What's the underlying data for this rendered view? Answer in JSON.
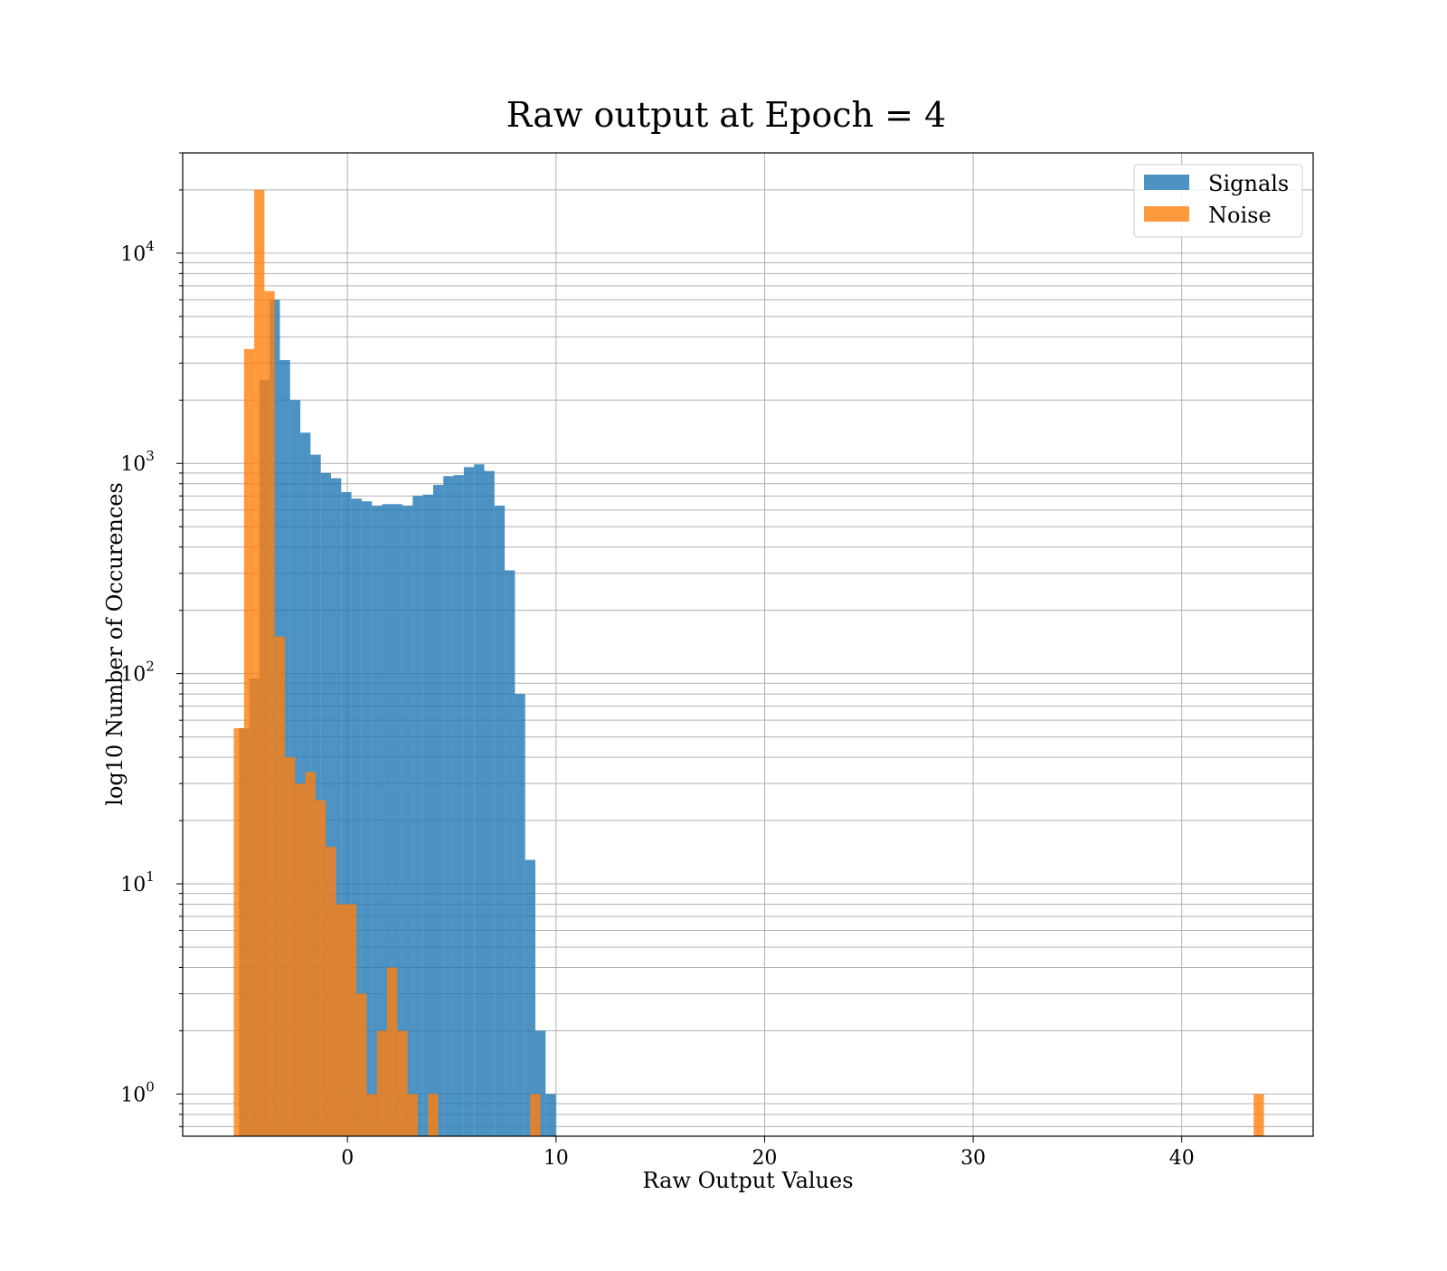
{
  "chart_data": {
    "type": "histogram",
    "title": "Raw output at Epoch = 4",
    "xlabel": "Raw Output Values",
    "ylabel": "log10 Number of Occurences",
    "xlim": [
      -7.9,
      46.3
    ],
    "ylim": [
      0.63,
      30000
    ],
    "yscale": "log",
    "grid": true,
    "legend_position": "top-right",
    "x_ticks": [
      0,
      10,
      20,
      30,
      40
    ],
    "y_ticks": [
      {
        "value": 1,
        "base": "10",
        "exp": "0"
      },
      {
        "value": 10,
        "base": "10",
        "exp": "1"
      },
      {
        "value": 100,
        "base": "10",
        "exp": "2"
      },
      {
        "value": 1000,
        "base": "10",
        "exp": "3"
      },
      {
        "value": 10000,
        "base": "10",
        "exp": "4"
      }
    ],
    "series": [
      {
        "name": "Signals",
        "color": "#1f77b4",
        "opacity": 0.8,
        "bin_start": -5.2,
        "bin_width": 0.49,
        "counts": [
          55,
          95,
          2500,
          6000,
          3100,
          2000,
          1400,
          1100,
          900,
          850,
          730,
          680,
          660,
          630,
          640,
          640,
          630,
          700,
          710,
          790,
          870,
          880,
          960,
          990,
          920,
          630,
          310,
          80,
          13,
          2,
          1
        ]
      },
      {
        "name": "Noise",
        "color": "#ff7f0e",
        "opacity": 0.8,
        "bin_start": -5.45,
        "bin_width": 0.49,
        "counts": [
          55,
          3500,
          20000,
          6600,
          150,
          40,
          30,
          34,
          25,
          15,
          8,
          8,
          3,
          1,
          2,
          4,
          2,
          1,
          0,
          1,
          0,
          0,
          0,
          0,
          0,
          0,
          0,
          0,
          0,
          1
        ],
        "extra_bins": [
          {
            "x": 43.45,
            "count": 1
          }
        ]
      }
    ]
  }
}
